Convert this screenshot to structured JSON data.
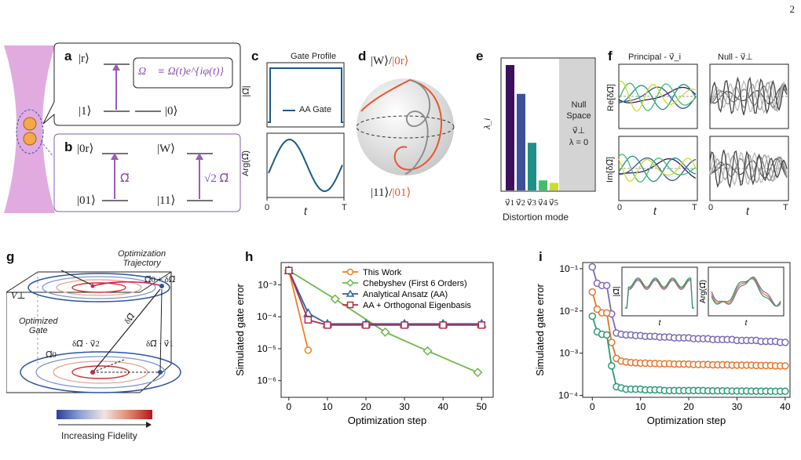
{
  "page_number": "2",
  "panel_a": {
    "label": "a",
    "ket_r": "|r⟩",
    "ket_1": "|1⟩",
    "ket_0": "|0⟩",
    "omega_def": "Ω⃗ ≡ Ω(t)e^{iφ(t)}"
  },
  "panel_b": {
    "label": "b",
    "ket_0r": "|0r⟩",
    "ket_W": "|W⟩",
    "ket_01": "|01⟩",
    "ket_11": "|11⟩",
    "omega": "Ω⃗",
    "omega_sqrt2": "√2 Ω⃗"
  },
  "panel_c": {
    "label": "c",
    "title": "Gate Profile",
    "legend": "AA Gate",
    "ylabel_top": "|Ω⃗|",
    "ylabel_bottom": "Arg(Ω⃗)",
    "xlabel": "t",
    "x0": "0",
    "xT": "T",
    "color": "#1a5a8a"
  },
  "panel_d": {
    "label": "d",
    "top_a": "|W⟩",
    "top_sep": "/",
    "top_b": "|0r⟩",
    "bottom_a": "|11⟩",
    "bottom_sep": "/",
    "bottom_b": "|01⟩",
    "orange": "#e8562a"
  },
  "panel_e": {
    "label": "e",
    "ylabel": "λ_i",
    "xlabel": "Distortion mode",
    "null_lines": [
      "Null",
      "Space",
      "v⃗⊥",
      "λ = 0"
    ],
    "ticks": [
      "v⃗1",
      "v⃗2",
      "v⃗3",
      "v⃗4",
      "v⃗5"
    ],
    "values": [
      1.0,
      0.77,
      0.38,
      0.08,
      0.06
    ],
    "colors": [
      "#3d0f5c",
      "#3b4f9a",
      "#1f8f8a",
      "#3fbf6a",
      "#c8de2a"
    ]
  },
  "panel_f": {
    "label": "f",
    "title_left": "Principal - v⃗_i",
    "title_right": "Null - v⃗⊥",
    "ylabel_top": "Re[δΩ⃗]",
    "ylabel_bottom": "Im[δΩ⃗]",
    "xlabel": "t",
    "x0": "0",
    "xT": "T"
  },
  "panel_g": {
    "label": "g",
    "traj_1": "Optimization",
    "traj_2": "Trajectory",
    "optgate_1": "Optimized",
    "optgate_2": "Gate",
    "v_perp": "V⊥",
    "omega0": "Ω⃗0",
    "omega0_plus": "Ω⃗0 + δΩ⃗",
    "delta_v2": "δΩ⃗ · v⃗2",
    "delta_v1": "δΩ⃗ · v⃗1",
    "delta": "δΩ⃗",
    "colorbar_label": "Increasing Fidelity"
  },
  "chart_data": [
    {
      "id": "h",
      "type": "line",
      "xlabel": "Optimization step",
      "ylabel": "Simulated gate error",
      "log_y": true,
      "xlim": [
        -2,
        53
      ],
      "ylim": [
        3e-07,
        0.005
      ],
      "xticks": [
        0,
        10,
        20,
        30,
        40,
        50
      ],
      "yticks_labels": [
        "10⁻⁶",
        "10⁻⁵",
        "10⁻⁴",
        "10⁻³"
      ],
      "yticks": [
        1e-06,
        1e-05,
        0.0001,
        0.001
      ],
      "series": [
        {
          "name": "This Work",
          "color": "#f07f1e",
          "marker": "circle",
          "x": [
            0,
            5
          ],
          "y": [
            0.0028,
            9e-06
          ]
        },
        {
          "name": "Chebyshev (First 6 Orders)",
          "color": "#6fb94a",
          "marker": "diamond",
          "x": [
            0,
            12,
            25,
            36,
            49
          ],
          "y": [
            0.0028,
            0.00036,
            3.3e-05,
            8.5e-06,
            1.8e-06
          ]
        },
        {
          "name": "Analytical Ansatz (AA)",
          "color": "#2a63a8",
          "marker": "triangle",
          "x": [
            0,
            5,
            10,
            20,
            30,
            40,
            50
          ],
          "y": [
            0.0028,
            0.00013,
            6e-05,
            6e-05,
            6e-05,
            6e-05,
            6e-05
          ]
        },
        {
          "name": "AA + Orthogonal Eigenbasis",
          "color": "#b82c4a",
          "marker": "square",
          "x": [
            0,
            5,
            10,
            20,
            30,
            40,
            50
          ],
          "y": [
            0.0028,
            8e-05,
            5.5e-05,
            5.5e-05,
            5.5e-05,
            5.5e-05,
            5.5e-05
          ]
        }
      ]
    },
    {
      "id": "i",
      "type": "line",
      "xlabel": "Optimization step",
      "ylabel": "Simulated gate error",
      "log_y": true,
      "xlim": [
        -2,
        41
      ],
      "ylim": [
        9e-05,
        0.14
      ],
      "xticks": [
        0,
        10,
        20,
        30,
        40
      ],
      "yticks_labels": [
        "10⁻⁴",
        "10⁻³",
        "10⁻²",
        "10⁻¹"
      ],
      "yticks": [
        0.0001,
        0.001,
        0.01,
        0.1
      ],
      "inset_left_ylabel": "|Ω⃗|",
      "inset_right_ylabel": "Arg(Ω⃗)",
      "inset_xlabel": "t",
      "series": [
        {
          "color": "#7a68b8",
          "x": [
            0,
            1,
            2,
            3,
            4,
            5,
            6,
            7,
            8,
            9,
            10,
            11,
            12,
            13,
            14,
            15,
            16,
            17,
            18,
            19,
            20,
            21,
            22,
            23,
            24,
            25,
            26,
            27,
            28,
            29,
            30,
            31,
            32,
            33,
            34,
            35,
            36,
            37,
            38,
            39,
            40
          ],
          "y": [
            0.11,
            0.045,
            0.04,
            0.04,
            0.0085,
            0.003,
            0.0028,
            0.0027,
            0.0027,
            0.0026,
            0.0026,
            0.0025,
            0.0025,
            0.0025,
            0.0024,
            0.0024,
            0.0024,
            0.0023,
            0.0023,
            0.0023,
            0.0023,
            0.0022,
            0.0022,
            0.0022,
            0.0022,
            0.0021,
            0.0021,
            0.0021,
            0.0021,
            0.0021,
            0.002,
            0.002,
            0.002,
            0.002,
            0.002,
            0.0019,
            0.0019,
            0.0019,
            0.0019,
            0.0018,
            0.0018
          ]
        },
        {
          "color": "#e8742a",
          "x": [
            0,
            1,
            2,
            3,
            4,
            5,
            6,
            7,
            8,
            9,
            10,
            11,
            12,
            13,
            14,
            15,
            16,
            17,
            18,
            19,
            20,
            21,
            22,
            23,
            24,
            25,
            26,
            27,
            28,
            29,
            30,
            31,
            32,
            33,
            34,
            35,
            36,
            37,
            38,
            39,
            40
          ],
          "y": [
            0.028,
            0.011,
            0.009,
            0.009,
            0.0018,
            0.00075,
            0.00065,
            0.00062,
            0.0006,
            0.00059,
            0.00058,
            0.00058,
            0.00057,
            0.00057,
            0.00056,
            0.00056,
            0.00056,
            0.00055,
            0.00055,
            0.00055,
            0.00055,
            0.00054,
            0.00054,
            0.00054,
            0.00054,
            0.00053,
            0.00053,
            0.00053,
            0.00053,
            0.00052,
            0.00052,
            0.00052,
            0.00052,
            0.00052,
            0.00051,
            0.00051,
            0.00051,
            0.00051,
            0.0005,
            0.0005,
            0.0005
          ]
        },
        {
          "color": "#2a9a74",
          "x": [
            0,
            1,
            2,
            3,
            4,
            5,
            6,
            7,
            8,
            9,
            10,
            11,
            12,
            13,
            14,
            15,
            16,
            17,
            18,
            19,
            20,
            21,
            22,
            23,
            24,
            25,
            26,
            27,
            28,
            29,
            30,
            31,
            32,
            33,
            34,
            35,
            36,
            37,
            38,
            39,
            40
          ],
          "y": [
            0.0075,
            0.0032,
            0.0028,
            0.0027,
            0.0005,
            0.00016,
            0.00015,
            0.00014,
            0.00014,
            0.00014,
            0.00014,
            0.000135,
            0.000135,
            0.000135,
            0.000135,
            0.00013,
            0.00013,
            0.00013,
            0.00013,
            0.00013,
            0.00013,
            0.00013,
            0.00013,
            0.00013,
            0.000128,
            0.000128,
            0.000128,
            0.000128,
            0.000128,
            0.000127,
            0.000127,
            0.000127,
            0.000127,
            0.000126,
            0.000126,
            0.000126,
            0.000126,
            0.000125,
            0.000125,
            0.000125,
            0.000125
          ]
        }
      ]
    }
  ]
}
